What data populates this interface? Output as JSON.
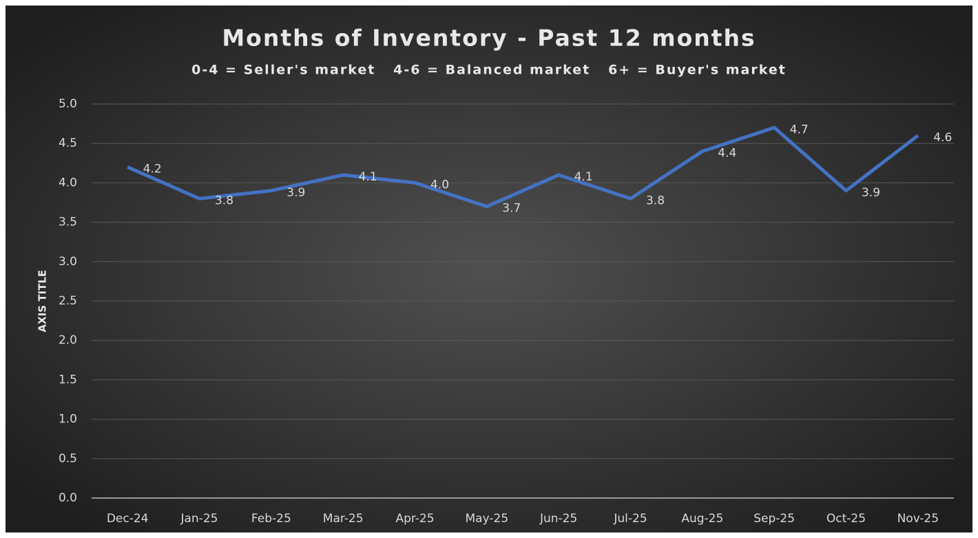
{
  "chart_data": {
    "type": "line",
    "title": "Months of Inventory - Past 12 months",
    "subtitle": "0-4 = Seller's market   4-6 = Balanced market   6+ = Buyer's market",
    "y_axis_label": "AXIS TITLE",
    "categories": [
      "Dec-24",
      "Jan-25",
      "Feb-25",
      "Mar-25",
      "Apr-25",
      "May-25",
      "Jun-25",
      "Jul-25",
      "Aug-25",
      "Sep-25",
      "Oct-25",
      "Nov-25"
    ],
    "series": [
      {
        "name": "Months of Inventory",
        "color": "#4472c4",
        "values": [
          4.2,
          3.8,
          3.9,
          4.1,
          4.0,
          3.7,
          4.1,
          3.8,
          4.4,
          4.7,
          3.9,
          4.6
        ],
        "value_labels": [
          "4.2",
          "3.8",
          "3.9",
          "4.1",
          "4.0",
          "3.7",
          "4.1",
          "3.8",
          "4.4",
          "4.7",
          "3.9",
          "4.6"
        ]
      }
    ],
    "ylim": [
      0,
      5
    ],
    "yticks": [
      {
        "value": 0,
        "label": "0.0"
      },
      {
        "value": 0.5,
        "label": "0.5"
      },
      {
        "value": 1,
        "label": "1.0"
      },
      {
        "value": 1.5,
        "label": "1.5"
      },
      {
        "value": 2,
        "label": "2.0"
      },
      {
        "value": 2.5,
        "label": "2.5"
      },
      {
        "value": 3,
        "label": "3.0"
      },
      {
        "value": 3.5,
        "label": "3.5"
      },
      {
        "value": 4,
        "label": "4.0"
      },
      {
        "value": 4.5,
        "label": "4.5"
      },
      {
        "value": 5,
        "label": "5.0"
      }
    ],
    "grid": true
  }
}
